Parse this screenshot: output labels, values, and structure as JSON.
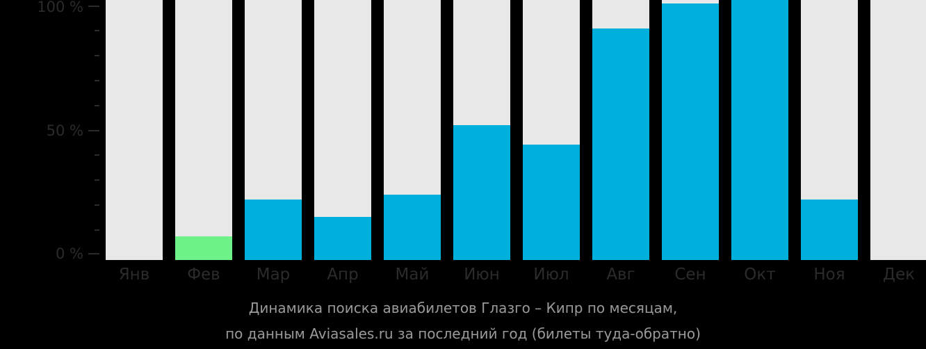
{
  "colors": {
    "background": "#000000",
    "bar_track": "#e8e8e8",
    "bar_fill": "#00b0dc",
    "bar_fill_highlight": "#6cf286",
    "axis_text": "#2b2b2b",
    "caption_text": "#9a9a9a"
  },
  "y_axis": {
    "labels": [
      "100 %",
      "50 %",
      "0 %"
    ]
  },
  "caption": {
    "line1": "Динамика поиска авиабилетов Глазго – Кипр по месяцам,",
    "line2": "по данным Aviasales.ru за последний год (билеты туда-обратно)"
  },
  "chart_data": {
    "type": "bar",
    "title": "Динамика поиска авиабилетов Глазго – Кипр по месяцам, по данным Aviasales.ru за последний год (билеты туда-обратно)",
    "xlabel": "",
    "ylabel": "",
    "ylim": [
      0,
      100
    ],
    "y_ticks": [
      "0 %",
      "50 %",
      "100 %"
    ],
    "grid": false,
    "legend": null,
    "categories": [
      "Янв",
      "Фев",
      "Мар",
      "Апр",
      "Май",
      "Июн",
      "Июл",
      "Авг",
      "Сен",
      "Окт",
      "Ноя",
      "Дек"
    ],
    "values": [
      0,
      7,
      22,
      15,
      24,
      52,
      44,
      91,
      101,
      103,
      22,
      0
    ],
    "highlighted_category": "Фев"
  }
}
